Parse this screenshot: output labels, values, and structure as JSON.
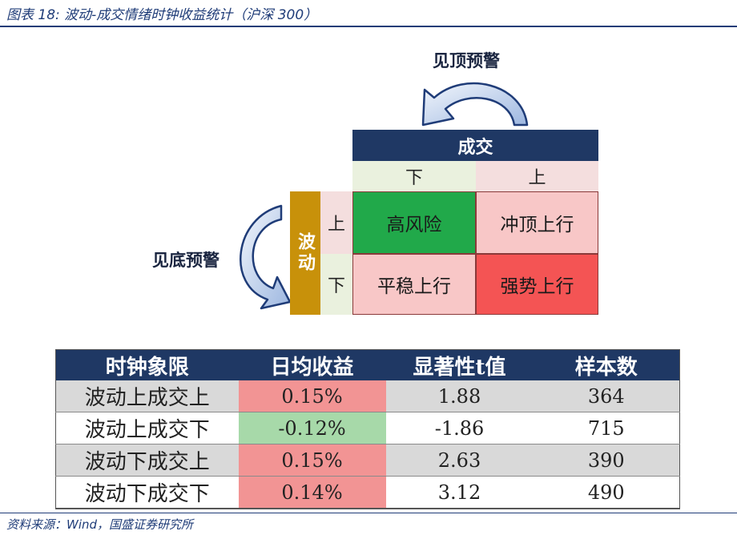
{
  "header": {
    "title": "图表 18:  波动-成交情绪时钟收益统计（沪深 300）"
  },
  "source": "资料来源：Wind，国盛证券研究所",
  "diagram": {
    "top_warning": "见顶预警",
    "bottom_warning": "见底预警",
    "axis_volume": "成交",
    "axis_volatility": "波动",
    "volume_low": "下",
    "volume_high": "上",
    "vol_high": "上",
    "vol_low": "下",
    "quadrants": {
      "high_vol_low_volume": "高风险",
      "high_vol_high_volume": "冲顶上行",
      "low_vol_low_volume": "平稳上行",
      "low_vol_high_volume": "强势上行"
    },
    "colors": {
      "header_navy": "#1f3864",
      "volatility_gold": "#c8910a",
      "high_risk_green": "#21a94a",
      "pink": "#f8c7c7",
      "strong_red": "#f45454",
      "light_green": "#eaf1de",
      "light_pink": "#f4dede"
    }
  },
  "chart_data": {
    "type": "table",
    "columns": [
      "时钟象限",
      "日均收益",
      "显著性t值",
      "样本数"
    ],
    "rows": [
      {
        "quadrant": "波动上成交上",
        "daily_return": "0.15%",
        "t_value": "1.88",
        "samples": "364",
        "sign": "pos"
      },
      {
        "quadrant": "波动上成交下",
        "daily_return": "-0.12%",
        "t_value": "-1.86",
        "samples": "715",
        "sign": "neg"
      },
      {
        "quadrant": "波动下成交上",
        "daily_return": "0.15%",
        "t_value": "2.63",
        "samples": "390",
        "sign": "pos"
      },
      {
        "quadrant": "波动下成交下",
        "daily_return": "0.14%",
        "t_value": "3.12",
        "samples": "490",
        "sign": "pos"
      }
    ]
  }
}
